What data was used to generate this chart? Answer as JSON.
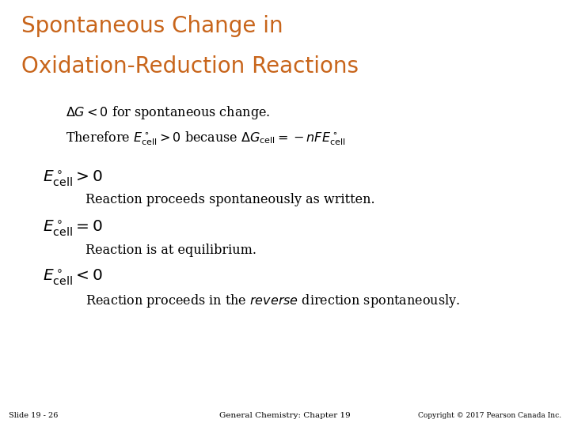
{
  "title_line1": "Spontaneous Change in",
  "title_line2": "Oxidation-Reduction Reactions",
  "title_color": "#C8651B",
  "background_color": "#FFFFFF",
  "body_color": "#000000",
  "footer_left": "Slide 19 - 26",
  "footer_center": "General Chemistry: Chapter 19",
  "footer_right": "Copyright © 2017 Pearson Canada Inc.",
  "figsize": [
    7.2,
    5.4
  ],
  "dpi": 100
}
